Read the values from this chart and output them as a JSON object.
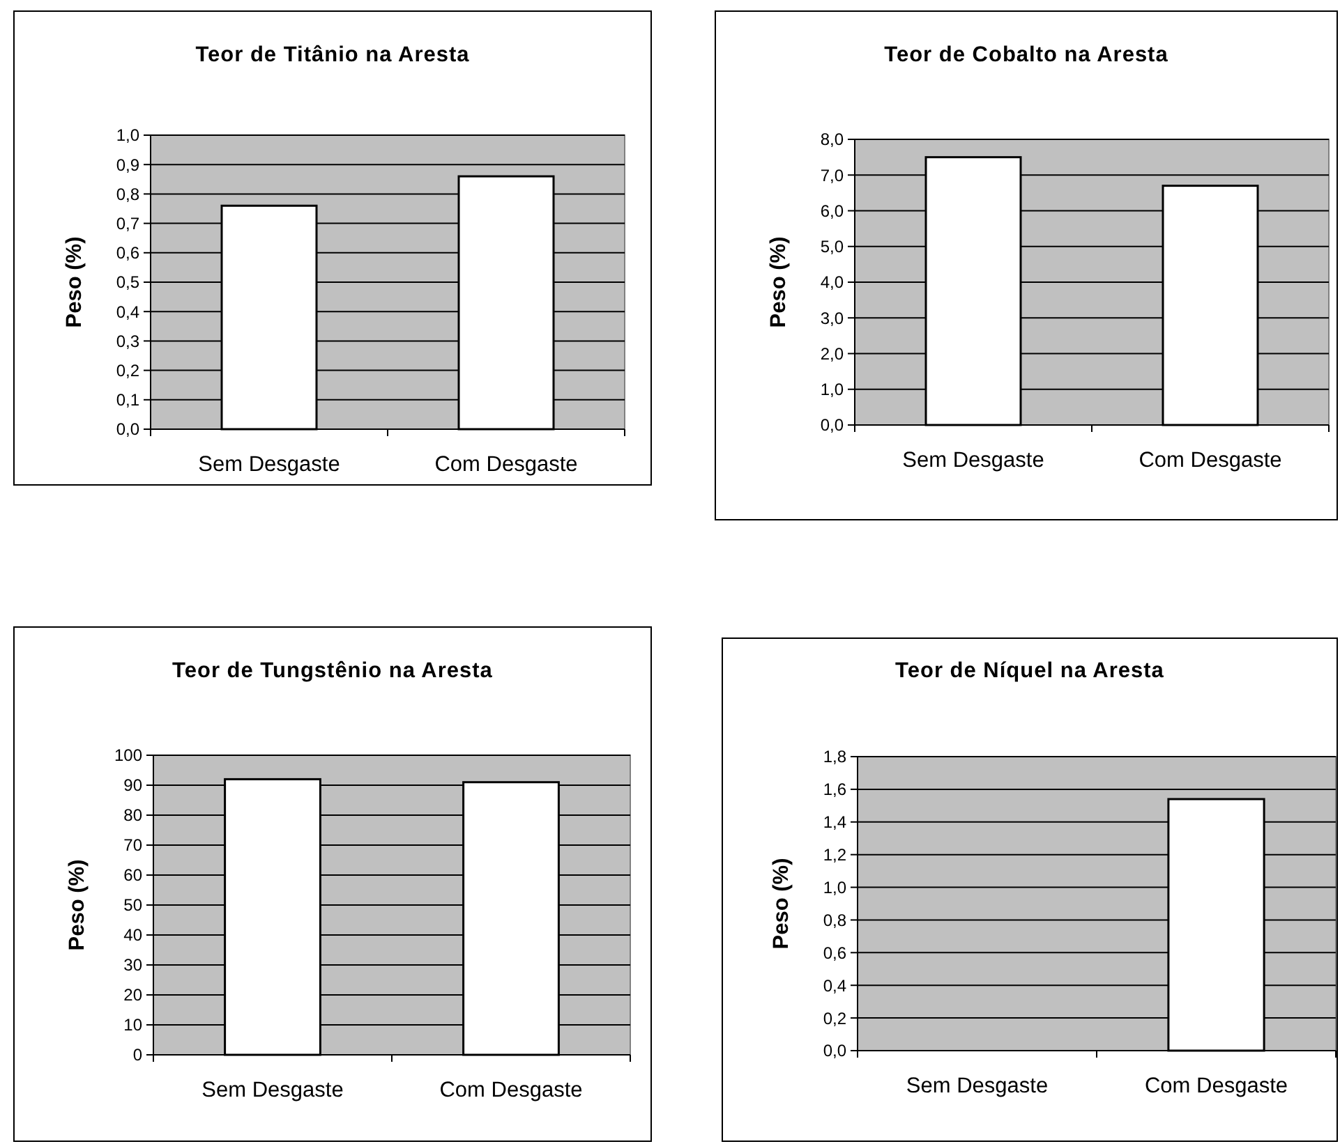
{
  "chart_data": [
    {
      "type": "bar",
      "title": "Teor de Titânio na Aresta",
      "ylabel": "Peso (%)",
      "categories": [
        "Sem Desgaste",
        "Com Desgaste"
      ],
      "values": [
        0.76,
        0.86
      ],
      "color": "#ffffff",
      "ylim": [
        0,
        1
      ],
      "yticks": [
        {
          "value": 0,
          "label": "0,0"
        },
        {
          "value": 0.1,
          "label": "0,1"
        },
        {
          "value": 0.2,
          "label": "0,2"
        },
        {
          "value": 0.3,
          "label": "0,3"
        },
        {
          "value": 0.4,
          "label": "0,4"
        },
        {
          "value": 0.5,
          "label": "0,5"
        },
        {
          "value": 0.6,
          "label": "0,6"
        },
        {
          "value": 0.7,
          "label": "0,7"
        },
        {
          "value": 0.8,
          "label": "0,8"
        },
        {
          "value": 0.9,
          "label": "0,9"
        },
        {
          "value": 1,
          "label": "1,0"
        }
      ],
      "grid": "y"
    },
    {
      "type": "bar",
      "title": "Teor de Cobalto na Aresta",
      "ylabel": "Peso (%)",
      "categories": [
        "Sem Desgaste",
        "Com Desgaste"
      ],
      "values": [
        7.5,
        6.7
      ],
      "color": "#ffffff",
      "ylim": [
        0,
        8
      ],
      "yticks": [
        {
          "value": 0,
          "label": "0,0"
        },
        {
          "value": 1,
          "label": "1,0"
        },
        {
          "value": 2,
          "label": "2,0"
        },
        {
          "value": 3,
          "label": "3,0"
        },
        {
          "value": 4,
          "label": "4,0"
        },
        {
          "value": 5,
          "label": "5,0"
        },
        {
          "value": 6,
          "label": "6,0"
        },
        {
          "value": 7,
          "label": "7,0"
        },
        {
          "value": 8,
          "label": "8,0"
        }
      ],
      "grid": "y"
    },
    {
      "type": "bar",
      "title": "Teor de Tungstênio na Aresta",
      "ylabel": "Peso (%)",
      "categories": [
        "Sem Desgaste",
        "Com Desgaste"
      ],
      "values": [
        92,
        91
      ],
      "color": "#ffffff",
      "ylim": [
        0,
        100
      ],
      "yticks": [
        0,
        10,
        20,
        30,
        40,
        50,
        60,
        70,
        80,
        90,
        100
      ],
      "grid": "y"
    },
    {
      "type": "bar",
      "title": "Teor de Níquel na Aresta",
      "ylabel": "Peso (%)",
      "categories": [
        "Sem Desgaste",
        "Com Desgaste"
      ],
      "values": [
        0,
        1.54
      ],
      "color": "#ffffff",
      "ylim": [
        0,
        1.8
      ],
      "yticks": [
        {
          "value": 0,
          "label": "0,0"
        },
        {
          "value": 0.2,
          "label": "0,2"
        },
        {
          "value": 0.4,
          "label": "0,4"
        },
        {
          "value": 0.6,
          "label": "0,6"
        },
        {
          "value": 0.8,
          "label": "0,8"
        },
        {
          "value": 1,
          "label": "1,0"
        },
        {
          "value": 1.2,
          "label": "1,2"
        },
        {
          "value": 1.4,
          "label": "1,4"
        },
        {
          "value": 1.6,
          "label": "1,6"
        },
        {
          "value": 1.8,
          "label": "1,8"
        }
      ],
      "grid": "y"
    }
  ]
}
